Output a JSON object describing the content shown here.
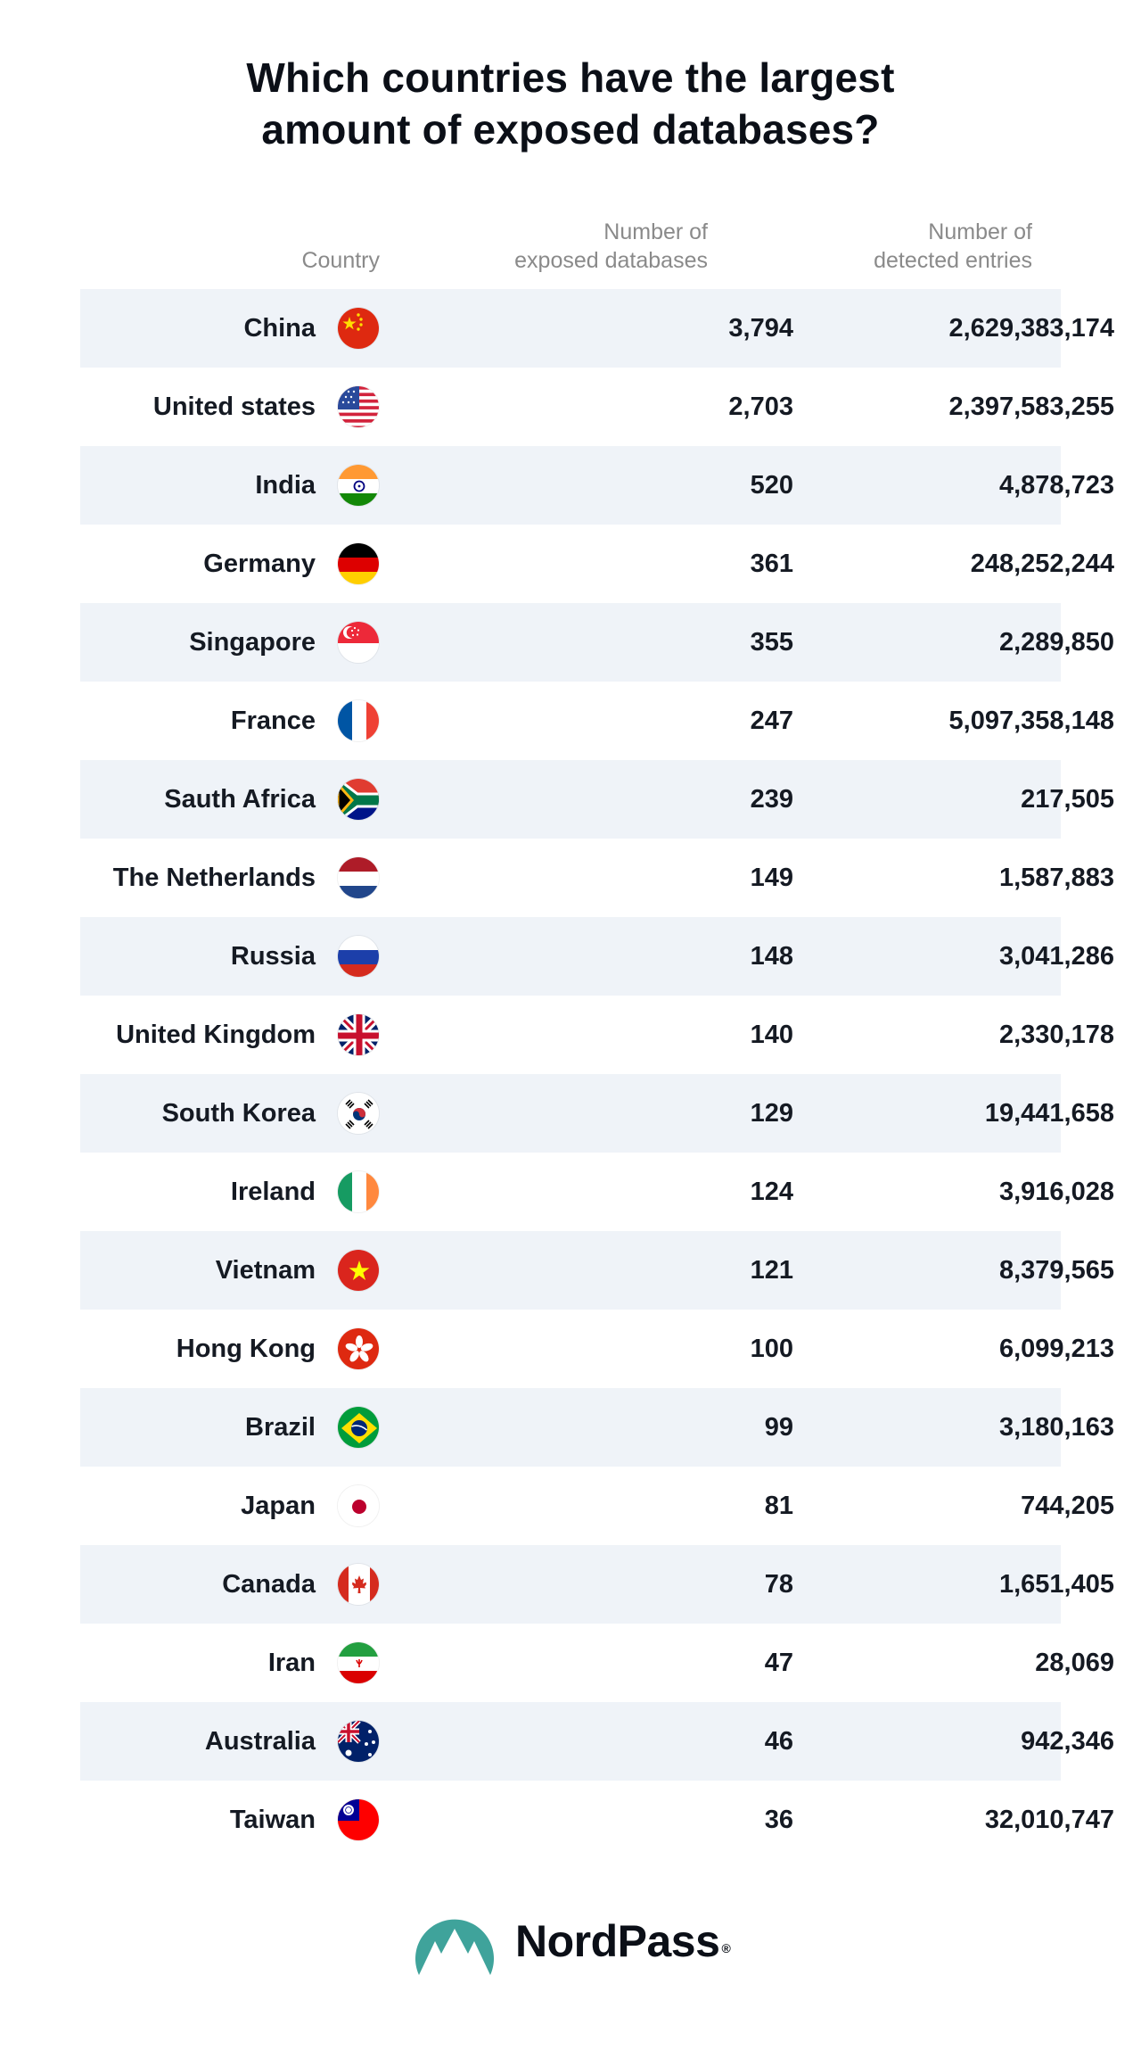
{
  "title": {
    "line1": "Which countries have the largest",
    "line2": "amount of exposed databases?"
  },
  "columns": {
    "country": "Country",
    "databases_line1": "Number of",
    "databases_line2": "exposed databases",
    "entries_line1": "Number of",
    "entries_line2": "detected entries"
  },
  "rows": [
    {
      "country": "China",
      "databases": "3,794",
      "entries": "2,629,383,174",
      "flag": "china-flag-icon"
    },
    {
      "country": "United states",
      "databases": "2,703",
      "entries": "2,397,583,255",
      "flag": "usa-flag-icon"
    },
    {
      "country": "India",
      "databases": "520",
      "entries": "4,878,723",
      "flag": "india-flag-icon"
    },
    {
      "country": "Germany",
      "databases": "361",
      "entries": "248,252,244",
      "flag": "germany-flag-icon"
    },
    {
      "country": "Singapore",
      "databases": "355",
      "entries": "2,289,850",
      "flag": "singapore-flag-icon"
    },
    {
      "country": "France",
      "databases": "247",
      "entries": "5,097,358,148",
      "flag": "france-flag-icon"
    },
    {
      "country": "Sauth Africa",
      "databases": "239",
      "entries": "217,505",
      "flag": "south-africa-flag-icon"
    },
    {
      "country": "The Netherlands",
      "databases": "149",
      "entries": "1,587,883",
      "flag": "netherlands-flag-icon"
    },
    {
      "country": "Russia",
      "databases": "148",
      "entries": "3,041,286",
      "flag": "russia-flag-icon"
    },
    {
      "country": "United Kingdom",
      "databases": "140",
      "entries": "2,330,178",
      "flag": "uk-flag-icon"
    },
    {
      "country": "South Korea",
      "databases": "129",
      "entries": "19,441,658",
      "flag": "south-korea-flag-icon"
    },
    {
      "country": "Ireland",
      "databases": "124",
      "entries": "3,916,028",
      "flag": "ireland-flag-icon"
    },
    {
      "country": "Vietnam",
      "databases": "121",
      "entries": "8,379,565",
      "flag": "vietnam-flag-icon"
    },
    {
      "country": "Hong Kong",
      "databases": "100",
      "entries": "6,099,213",
      "flag": "hong-kong-flag-icon"
    },
    {
      "country": "Brazil",
      "databases": "99",
      "entries": "3,180,163",
      "flag": "brazil-flag-icon"
    },
    {
      "country": "Japan",
      "databases": "81",
      "entries": "744,205",
      "flag": "japan-flag-icon"
    },
    {
      "country": "Canada",
      "databases": "78",
      "entries": "1,651,405",
      "flag": "canada-flag-icon"
    },
    {
      "country": "Iran",
      "databases": "47",
      "entries": "28,069",
      "flag": "iran-flag-icon"
    },
    {
      "country": "Australia",
      "databases": "46",
      "entries": "942,346",
      "flag": "australia-flag-icon"
    },
    {
      "country": "Taiwan",
      "databases": "36",
      "entries": "32,010,747",
      "flag": "taiwan-flag-icon"
    }
  ],
  "logo": {
    "name": "NordPass",
    "registered": "®",
    "icon": "nordpass-mountain-icon",
    "color": "#3fa39b"
  },
  "colors": {
    "row_alt_background": "#eff3f8",
    "header_text": "#8a8a8a",
    "body_text": "#151a23"
  }
}
